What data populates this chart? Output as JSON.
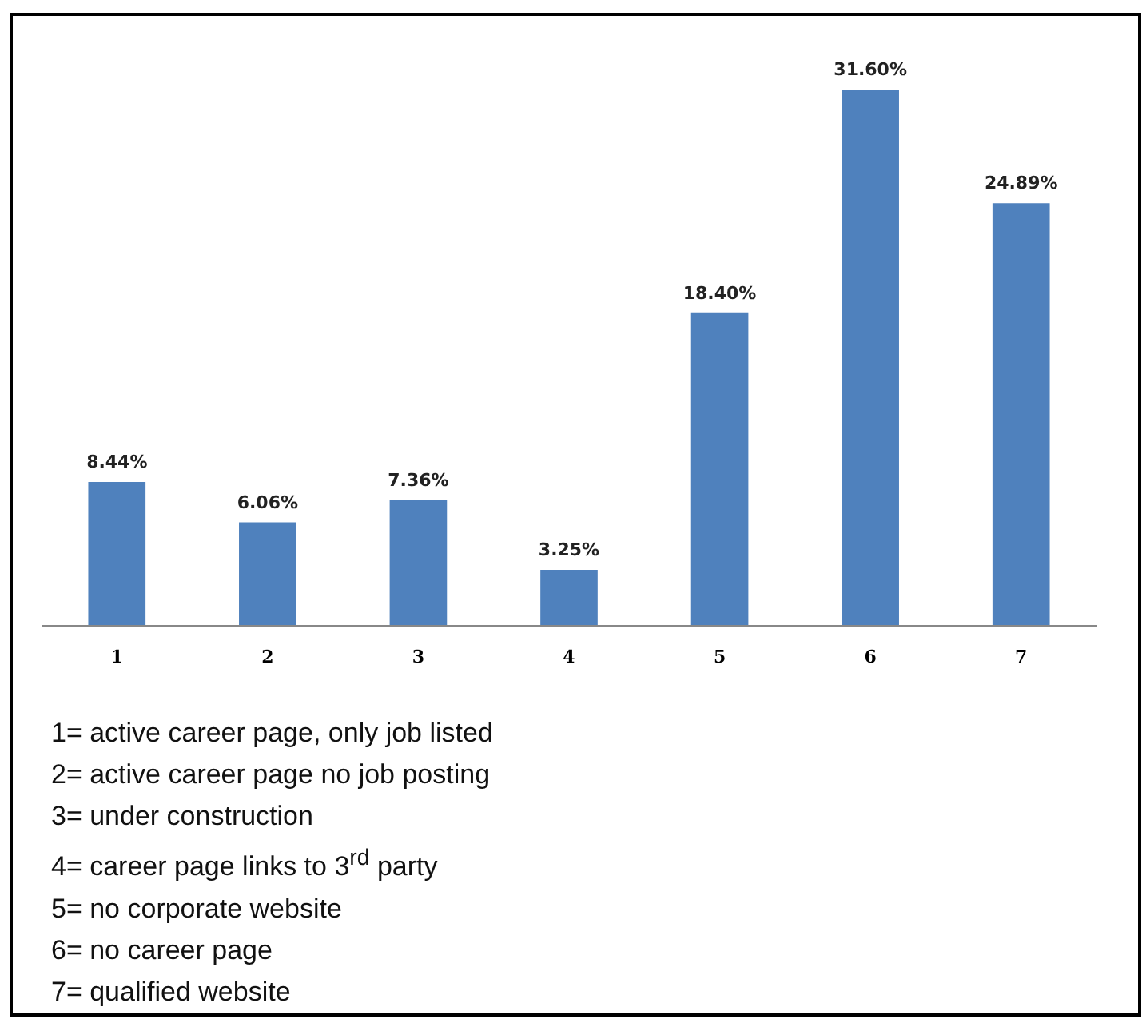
{
  "chart_data": {
    "type": "bar",
    "categories": [
      "1",
      "2",
      "3",
      "4",
      "5",
      "6",
      "7"
    ],
    "values": [
      8.44,
      6.06,
      7.36,
      3.25,
      18.4,
      31.6,
      24.89
    ],
    "value_labels": [
      "8.44%",
      "6.06%",
      "7.36%",
      "3.25%",
      "18.40%",
      "31.60%",
      "24.89%"
    ],
    "color": "#4f81bd",
    "annotations": [
      "1= active career page, only job listed",
      "2= active career page no job posting",
      "3= under construction",
      "4= career page links to 3$^{rd}$ party",
      "5= no corporate website",
      "6= no career page",
      "7= qualified website"
    ]
  }
}
